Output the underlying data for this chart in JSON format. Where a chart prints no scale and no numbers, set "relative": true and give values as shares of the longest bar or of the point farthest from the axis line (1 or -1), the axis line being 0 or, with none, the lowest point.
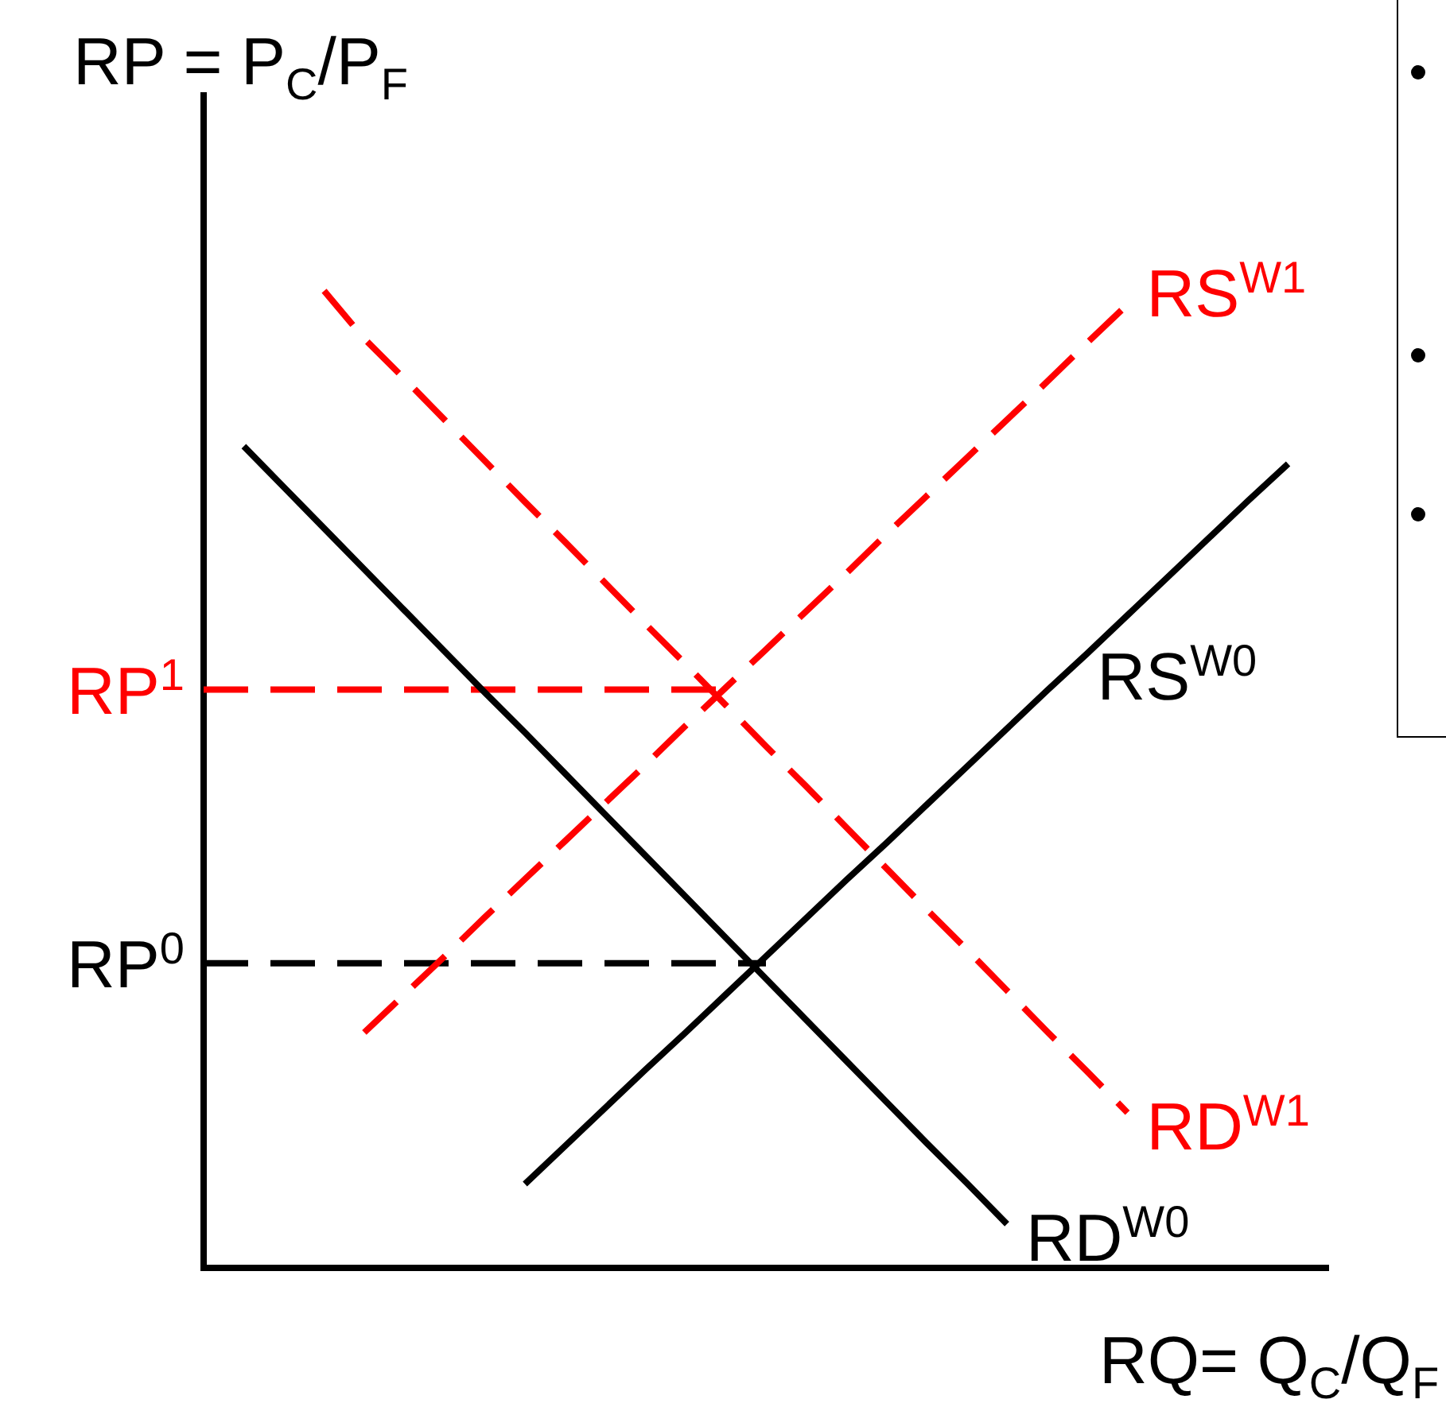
{
  "chart_data": {
    "type": "line",
    "relative": true,
    "legend": false,
    "marker": "none",
    "ylabel": "RP = P$_{C}$/P$_{F}$",
    "xlabel": "RQ= Q$_{C}$/Q$_{F}$",
    "categories": [
      null,
      null,
      null,
      null,
      null,
      null,
      null,
      null,
      null,
      null,
      null,
      null,
      null,
      null,
      null,
      null,
      null,
      null,
      null,
      null,
      null,
      null,
      null,
      null,
      null,
      null,
      null,
      null,
      null
    ],
    "series": [
      {
        "name": "RD$^{W0}$",
        "color": "#000000",
        "line_style": "solid",
        "values": [
          null,
          0.841,
          0.799,
          0.757,
          0.715,
          0.673,
          0.631,
          0.589,
          0.548,
          0.506,
          0.464,
          0.422,
          0.38,
          0.338,
          0.296,
          0.254,
          0.212,
          0.17,
          0.128,
          0.087,
          0.045,
          null,
          null,
          null,
          null,
          null,
          null,
          null,
          null
        ]
      },
      {
        "name": "RS$^{W0}$",
        "color": "#000000",
        "line_style": "solid",
        "values": [
          null,
          null,
          null,
          null,
          null,
          null,
          null,
          null,
          0.086,
          0.125,
          0.164,
          0.203,
          0.241,
          0.28,
          0.319,
          0.358,
          0.397,
          0.435,
          0.474,
          0.513,
          0.552,
          0.591,
          0.629,
          0.668,
          0.707,
          0.746,
          0.785,
          0.823,
          null
        ]
      },
      {
        "name": "RS$^{W1}$",
        "color": "#ff0000",
        "line_style": "dashed",
        "values": [
          null,
          null,
          null,
          null,
          0.241,
          0.28,
          0.319,
          0.359,
          0.398,
          0.437,
          0.476,
          0.515,
          0.555,
          0.594,
          0.633,
          0.672,
          0.711,
          0.751,
          0.79,
          0.829,
          0.868,
          0.907,
          0.947,
          0.986,
          null,
          null,
          null,
          null,
          null
        ]
      },
      {
        "name": "RD$^{W1}$",
        "color": "#ff0000",
        "line_style": "dashed",
        "values": [
          null,
          null,
          null,
          1,
          0.951,
          0.91,
          0.868,
          0.826,
          0.784,
          0.743,
          0.701,
          0.659,
          0.618,
          0.576,
          0.534,
          0.493,
          0.451,
          0.409,
          0.367,
          0.326,
          0.284,
          0.242,
          0.201,
          0.159,
          null,
          null,
          null,
          null,
          null
        ]
      },
      {
        "name": "RP$^{1}$",
        "color": "#ff0000",
        "line_style": "dashed",
        "values": [
          0.592,
          0.592,
          0.592,
          0.592,
          0.592,
          0.592,
          0.592,
          0.592,
          0.592,
          0.592,
          0.592,
          0.592,
          0.592,
          0.592,
          null,
          null,
          null,
          null,
          null,
          null,
          null,
          null,
          null,
          null,
          null,
          null,
          null,
          null,
          null
        ]
      },
      {
        "name": "RP$^{0}$",
        "color": "#000000",
        "line_style": "dashed",
        "values": [
          0.312,
          0.312,
          0.312,
          0.312,
          0.312,
          0.312,
          0.312,
          0.312,
          0.312,
          0.312,
          0.312,
          0.312,
          0.312,
          0.312,
          0.312,
          null,
          null,
          null,
          null,
          null,
          null,
          null,
          null,
          null,
          null,
          null,
          null,
          null,
          null
        ]
      }
    ]
  }
}
